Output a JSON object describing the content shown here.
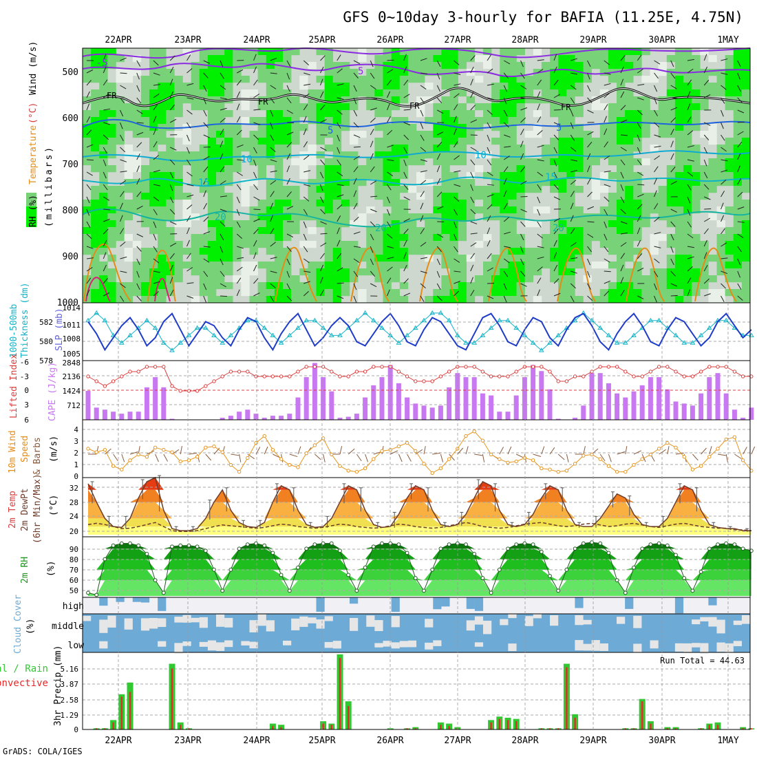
{
  "title": "GFS 0~10day 3-hourly for BAFIA (11.25E, 4.75N)",
  "credit": "GrADS: COLA/IGES",
  "colors": {
    "rh_light": "#e8f0e8",
    "rh_mid": "#78d278",
    "rh_bright": "#00f000",
    "wind_purple": "#8a2be2",
    "temp_blue": "#1e64dc",
    "temp_cyan": "#0faad2",
    "temp_teal": "#14b4a0",
    "slp": "#1e3cc8",
    "thickness": "#14b4c8",
    "lifted_index": "#dc3c3c",
    "cape": "#c878f0",
    "wind10m": "#e6961e",
    "rain_total": "#32c832",
    "rain_conv": "#e62828",
    "cloud": "#6eaad6"
  },
  "x_axis": {
    "labels": [
      "22APR",
      "23APR",
      "24APR",
      "25APR",
      "26APR",
      "27APR",
      "28APR",
      "29APR",
      "30APR",
      "1MAY"
    ]
  },
  "panels": {
    "profile": {
      "labels": [
        "RH (%)",
        "Temperature",
        "(°C)",
        "Wind (m/s)",
        "(millibars)"
      ],
      "y_ticks": [
        "500",
        "600",
        "700",
        "800",
        "900",
        "1000"
      ],
      "contour_labels": [
        "-5",
        "5",
        "FR",
        "FR",
        "FR",
        "FR",
        "5",
        "5",
        "10",
        "10",
        "15",
        "15",
        "20",
        "20",
        "20",
        "10"
      ]
    },
    "slp": {
      "labels": [
        "1000-500mb",
        "Thickness (dm)",
        "SLP (mb)"
      ],
      "y_ticks_left": [
        "582",
        "580",
        "578"
      ],
      "y_ticks_right": [
        "1014",
        "1011",
        "1008",
        "1005"
      ]
    },
    "li": {
      "labels": [
        "Lifted Index",
        "CAPE (J/kg)"
      ],
      "y_ticks_left": [
        "-6",
        "-3",
        "0",
        "3",
        "6"
      ],
      "y_ticks_right": [
        "2848",
        "2136",
        "1424",
        "712"
      ]
    },
    "wind10": {
      "labels": [
        "10m Wind",
        "Speed",
        "& Barbs",
        "(m/s)"
      ],
      "y_ticks": [
        "4",
        "3",
        "2",
        "1",
        "0"
      ]
    },
    "temp2m": {
      "labels": [
        "2m Temp",
        "2m DewPt",
        "(6hr Min/Max)",
        "(°C)"
      ],
      "y_ticks": [
        "32",
        "28",
        "24",
        "20"
      ]
    },
    "rh2m": {
      "labels": [
        "2m RH",
        "(%)"
      ],
      "y_ticks": [
        "90",
        "80",
        "70",
        "60",
        "50"
      ]
    },
    "cloud": {
      "labels": [
        "Cloud Cover",
        "(%)"
      ],
      "layers": [
        "high",
        "middle",
        "low"
      ]
    },
    "precip": {
      "labels": [
        "Total / Rain",
        "Convective",
        "3hr Precip (mm)"
      ],
      "y_ticks": [
        "5.16",
        "3.87",
        "2.58",
        "1.29",
        "0"
      ],
      "run_total": "Run Total = 44.63"
    }
  },
  "chart_data": [
    {
      "type": "line",
      "title": "Sea level pressure (mb)",
      "ylim": [
        1003,
        1016
      ],
      "series": [
        {
          "name": "SLP (mb)",
          "values": [
            1012,
            1009,
            1005,
            1008,
            1011,
            1013,
            1010,
            1006,
            1008,
            1012,
            1014,
            1010,
            1006,
            1009,
            1012,
            1011,
            1008,
            1006,
            1010,
            1013,
            1012,
            1008,
            1005,
            1009,
            1012,
            1014,
            1010,
            1006,
            1008,
            1011,
            1013,
            1011,
            1007,
            1006,
            1009,
            1012,
            1014,
            1011,
            1007,
            1006,
            1010,
            1013,
            1012,
            1009,
            1006,
            1005,
            1009,
            1013,
            1014,
            1011,
            1007,
            1006,
            1010,
            1013,
            1012,
            1008,
            1006,
            1010,
            1013,
            1014,
            1011,
            1007,
            1005,
            1009,
            1012,
            1014,
            1011,
            1007,
            1006,
            1010,
            1013,
            1012,
            1009,
            1006,
            1008,
            1012,
            1014,
            1011,
            1008,
            1010
          ]
        }
      ]
    },
    {
      "type": "line",
      "title": "1000-500mb thickness (dm)",
      "ylim": [
        577,
        584
      ],
      "series": [
        {
          "name": "Thickness (dm)",
          "values": [
            582,
            583,
            582,
            580,
            579,
            580,
            581,
            582,
            581,
            579,
            578,
            579,
            580,
            581,
            581,
            580,
            579,
            580,
            581,
            582,
            582,
            581,
            580,
            579,
            580,
            581,
            582,
            582,
            581,
            580,
            580,
            581,
            582,
            583,
            582,
            581,
            580,
            579,
            580,
            581,
            582,
            583,
            583,
            582,
            580,
            579,
            579,
            580,
            581,
            582,
            582,
            581,
            580,
            579,
            578,
            579,
            580,
            581,
            582,
            583,
            582,
            581,
            580,
            579,
            579,
            580,
            581,
            582,
            582,
            581,
            580,
            579,
            579,
            580,
            581,
            582,
            582,
            581,
            580,
            580
          ]
        }
      ]
    },
    {
      "type": "bar",
      "title": "CAPE (J/kg)",
      "ylim": [
        0,
        2848
      ],
      "values": [
        1424,
        600,
        500,
        400,
        300,
        400,
        400,
        1600,
        2100,
        1600,
        50,
        0,
        0,
        0,
        0,
        0,
        100,
        200,
        400,
        500,
        300,
        100,
        200,
        200,
        300,
        1100,
        2100,
        2800,
        2100,
        1400,
        100,
        150,
        300,
        1100,
        1700,
        2100,
        2700,
        1800,
        1100,
        800,
        700,
        600,
        700,
        1600,
        2300,
        2100,
        2100,
        1300,
        1200,
        400,
        400,
        1200,
        2100,
        2700,
        2400,
        1500,
        50,
        0,
        100,
        700,
        2300,
        2300,
        1800,
        1300,
        1100,
        1400,
        1700,
        2100,
        2100,
        1500,
        900,
        800,
        700,
        1300,
        2100,
        2300,
        1300,
        500,
        100,
        600
      ]
    },
    {
      "type": "line",
      "title": "Lifted Index",
      "ylim": [
        -6,
        6
      ],
      "series": [
        {
          "name": "Lifted Index",
          "values": [
            -3,
            -2,
            -1,
            -2,
            -3,
            -4,
            -4,
            -5,
            -5,
            -5,
            -1,
            0,
            0,
            0,
            -1,
            -2,
            -3,
            -4,
            -4,
            -4,
            -3,
            -3,
            -3,
            -3,
            -3,
            -4,
            -5,
            -5,
            -5,
            -4,
            -3,
            -3,
            -4,
            -4,
            -5,
            -5,
            -5,
            -4,
            -3,
            -2,
            -2,
            -2,
            -3,
            -4,
            -5,
            -5,
            -5,
            -4,
            -3,
            -3,
            -3,
            -4,
            -5,
            -5,
            -5,
            -4,
            -2,
            -2,
            -3,
            -3,
            -4,
            -5,
            -5,
            -5,
            -4,
            -3,
            -3,
            -4,
            -5,
            -5,
            -4,
            -3,
            -3,
            -4,
            -5,
            -5,
            -5,
            -4,
            -3,
            -3
          ]
        }
      ]
    },
    {
      "type": "line",
      "title": "10m wind speed (m/s)",
      "ylim": [
        0,
        5
      ],
      "series": [
        {
          "name": "Speed (m/s)",
          "values": [
            2.5,
            2.2,
            2.4,
            1.0,
            0.7,
            1.5,
            2.0,
            1.8,
            2.6,
            2.4,
            2.2,
            1.4,
            1.5,
            1.8,
            2.6,
            2.7,
            2.2,
            1.1,
            0.5,
            1.7,
            3.0,
            3.6,
            2.4,
            1.6,
            1.1,
            0.9,
            2.1,
            2.8,
            3.4,
            2.0,
            1.0,
            0.6,
            0.5,
            0.8,
            1.6,
            2.3,
            2.4,
            2.7,
            3.0,
            2.3,
            1.2,
            0.4,
            0.8,
            1.6,
            2.5,
            3.6,
            4.0,
            3.2,
            2.0,
            1.6,
            1.3,
            1.4,
            1.7,
            1.5,
            0.8,
            0.7,
            0.5,
            0.6,
            1.2,
            1.9,
            2.0,
            1.6,
            1.0,
            0.5,
            0.5,
            1.1,
            1.6,
            2.0,
            2.5,
            3.0,
            2.6,
            1.8,
            0.7,
            1.0,
            1.8,
            2.5,
            3.3,
            3.5,
            1.5,
            0.6
          ]
        }
      ]
    },
    {
      "type": "area",
      "title": "2m temperature and dew point (°C)",
      "ylim": [
        19.5,
        34
      ],
      "series": [
        {
          "name": "2m Temp",
          "values": [
            32.5,
            28,
            24,
            22,
            21.8,
            24,
            29,
            33,
            34,
            26,
            21.5,
            21,
            21,
            21.5,
            24,
            28,
            31,
            26,
            23,
            22,
            21.8,
            23,
            28,
            32,
            31,
            26,
            22.5,
            21.8,
            22,
            24,
            28,
            32,
            31,
            26,
            22.5,
            21.8,
            22,
            25,
            29,
            32,
            31,
            26,
            22.5,
            22,
            22.5,
            25,
            29,
            33,
            32,
            26,
            22.5,
            22,
            22.5,
            25,
            29,
            32,
            31,
            26,
            22.5,
            22,
            22,
            24,
            27,
            30,
            29,
            25,
            22.5,
            22,
            22,
            24,
            28,
            32,
            31,
            26,
            22.5,
            21.8,
            21.5,
            21.5,
            21,
            21
          ]
        },
        {
          "name": "2m DewPt",
          "values": [
            22.5,
            22.8,
            22.5,
            22,
            21.5,
            21.6,
            22,
            22.5,
            23,
            22,
            21,
            20.8,
            20.8,
            21,
            21.5,
            22,
            22.4,
            22.2,
            22,
            21.8,
            21.6,
            21.8,
            22.2,
            22.6,
            22.4,
            22,
            21.8,
            21.6,
            21.8,
            22.2,
            22.6,
            22.4,
            22,
            21.8,
            21.6,
            21.8,
            22.2,
            22.6,
            22.4,
            22,
            21.8,
            21.6,
            21.8,
            22.2,
            22.6,
            23,
            22.6,
            22,
            21.8,
            21.6,
            21.8,
            22.2,
            22.6,
            22.8,
            23,
            22.6,
            22.2,
            22,
            22.2,
            22.6,
            22.8,
            22.4,
            22,
            22.2,
            22.6,
            22.8,
            22.4,
            22,
            21.8,
            22.2,
            22.6,
            22.8,
            22.4,
            22,
            21.8,
            21.6,
            21.6,
            21.2,
            21.2,
            21
          ]
        }
      ]
    },
    {
      "type": "area",
      "title": "2m relative humidity (%)",
      "ylim": [
        45,
        100
      ],
      "series": [
        {
          "name": "2m RH",
          "values": [
            48,
            46,
            80,
            93,
            95,
            95,
            93,
            85,
            60,
            48,
            92,
            93,
            93,
            92,
            88,
            70,
            50,
            70,
            90,
            94,
            95,
            93,
            86,
            65,
            50,
            72,
            90,
            94,
            95,
            95,
            88,
            65,
            50,
            72,
            92,
            95,
            95,
            94,
            86,
            62,
            50,
            70,
            90,
            94,
            95,
            94,
            85,
            62,
            48,
            70,
            90,
            94,
            95,
            94,
            87,
            64,
            50,
            70,
            90,
            95,
            96,
            95,
            86,
            60,
            48,
            72,
            90,
            94,
            95,
            93,
            84,
            62,
            50,
            68,
            90,
            94,
            95,
            94,
            90,
            88
          ]
        }
      ]
    },
    {
      "type": "bar",
      "title": "3hr precipitation (mm)",
      "ylim": [
        0,
        6.45
      ],
      "series": [
        {
          "name": "Total / Rain",
          "values": [
            0,
            0.1,
            0.1,
            0.8,
            3.0,
            4.0,
            0,
            0,
            0,
            0,
            5.6,
            0.6,
            0.1,
            0,
            0,
            0,
            0,
            0,
            0,
            0,
            0,
            0,
            0.5,
            0.4,
            0,
            0,
            0,
            0,
            0.7,
            0.5,
            6.4,
            2.4,
            0,
            0,
            0,
            0,
            0.1,
            0,
            0.1,
            0.2,
            0,
            0,
            0.6,
            0.5,
            0.2,
            0,
            0,
            0,
            0.8,
            1.1,
            1.0,
            0.9,
            0,
            0,
            0.1,
            0.1,
            0.1,
            5.6,
            1.3,
            0,
            0,
            0,
            0,
            0,
            0.1,
            0.1,
            2.6,
            0.7,
            0,
            0.2,
            0.2,
            0,
            0,
            0.1,
            0.5,
            0.6,
            0,
            0,
            0.2,
            0.1
          ]
        },
        {
          "name": "Convective",
          "values": [
            0,
            0.1,
            0.1,
            0.6,
            2.8,
            3.2,
            0,
            0,
            0,
            0,
            5.2,
            0.4,
            0.1,
            0,
            0,
            0,
            0,
            0,
            0,
            0,
            0,
            0,
            0.3,
            0.2,
            0,
            0,
            0,
            0,
            0.5,
            0.4,
            6.1,
            2.0,
            0,
            0,
            0,
            0,
            0,
            0,
            0.1,
            0.1,
            0,
            0,
            0.4,
            0.3,
            0.1,
            0,
            0,
            0,
            0.6,
            0.9,
            0.8,
            0.7,
            0,
            0,
            0.1,
            0.1,
            0.1,
            5.3,
            1.0,
            0,
            0,
            0,
            0,
            0,
            0.1,
            0.1,
            2.4,
            0.5,
            0,
            0.1,
            0.1,
            0,
            0,
            0.1,
            0.4,
            0.4,
            0,
            0,
            0.1,
            0.1
          ]
        }
      ]
    }
  ]
}
